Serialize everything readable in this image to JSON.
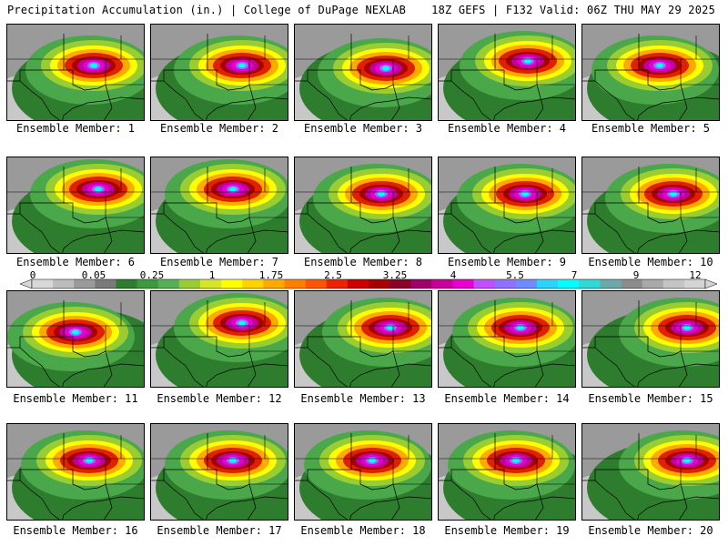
{
  "header": {
    "title": "Precipitation Accumulation (in.) | College of DuPage NEXLAB",
    "run_info": "18Z GEFS | F132 Valid: 06Z THU MAY 29 2025"
  },
  "colorbar": {
    "labels": [
      "0",
      "0.05",
      "0.25",
      "1",
      "1.75",
      "2.5",
      "3.25",
      "4",
      "5.5",
      "7",
      "9",
      "12"
    ],
    "colors": [
      "#d8d8d8",
      "#bcbcbc",
      "#9a9a9a",
      "#7a7a7a",
      "#2e7d2e",
      "#3c9a3c",
      "#54b054",
      "#9acd32",
      "#d6e626",
      "#ffff00",
      "#ffd400",
      "#ffaa00",
      "#ff8000",
      "#ff5500",
      "#ee2200",
      "#cc0000",
      "#a80000",
      "#8a0028",
      "#a0006a",
      "#c8009a",
      "#e800d0",
      "#c050ff",
      "#9070ff",
      "#6e8cff",
      "#2ad4ff",
      "#00ffff",
      "#30d8d8",
      "#6aaaaa",
      "#8c8c8c",
      "#a8a8a8",
      "#c4c4c4",
      "#d4d4d4"
    ]
  },
  "members": [
    {
      "label": "Ensemble Member: 1"
    },
    {
      "label": "Ensemble Member: 2"
    },
    {
      "label": "Ensemble Member: 3"
    },
    {
      "label": "Ensemble Member: 4"
    },
    {
      "label": "Ensemble Member: 5"
    },
    {
      "label": "Ensemble Member: 6"
    },
    {
      "label": "Ensemble Member: 7"
    },
    {
      "label": "Ensemble Member: 8"
    },
    {
      "label": "Ensemble Member: 9"
    },
    {
      "label": "Ensemble Member: 10"
    },
    {
      "label": "Ensemble Member: 11"
    },
    {
      "label": "Ensemble Member: 12"
    },
    {
      "label": "Ensemble Member: 13"
    },
    {
      "label": "Ensemble Member: 14"
    },
    {
      "label": "Ensemble Member: 15"
    },
    {
      "label": "Ensemble Member: 16"
    },
    {
      "label": "Ensemble Member: 17"
    },
    {
      "label": "Ensemble Member: 18"
    },
    {
      "label": "Ensemble Member: 19"
    },
    {
      "label": "Ensemble Member: 20"
    }
  ],
  "map_colors": {
    "light_gray": "#c8c8c8",
    "gray": "#9a9a9a",
    "dark_green": "#2e7d2e",
    "green": "#4aa84a",
    "light_green": "#9acd32",
    "yellow": "#ffff00",
    "orange": "#ffaa00",
    "red": "#e02000",
    "dark_red": "#a80000",
    "magenta": "#c000a0",
    "pink": "#e800d0",
    "violet": "#9070ff",
    "cyan": "#00ffff"
  }
}
